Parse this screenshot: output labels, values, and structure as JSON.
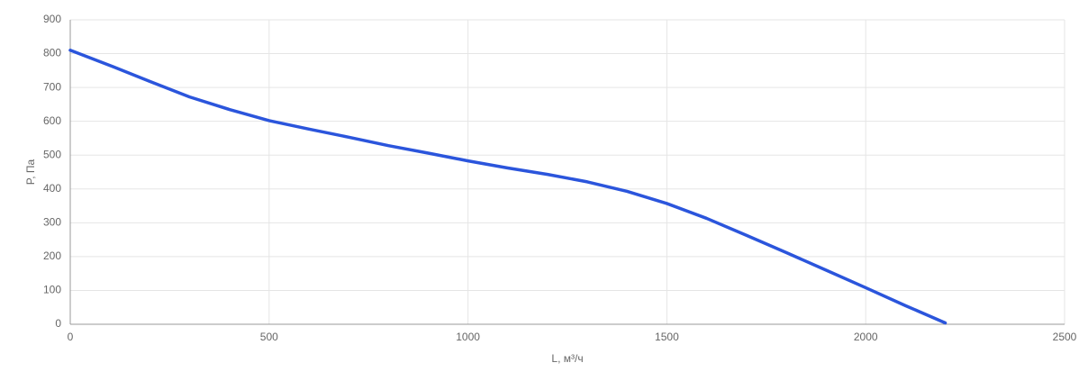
{
  "chart_data": {
    "type": "line",
    "x_label": "L, м³/ч",
    "y_label": "P, Па",
    "x": [
      0,
      100,
      200,
      300,
      400,
      500,
      600,
      700,
      800,
      900,
      1000,
      1100,
      1200,
      1300,
      1400,
      1500,
      1600,
      1700,
      1800,
      1900,
      2000,
      2100,
      2200
    ],
    "series": [
      {
        "name": "P",
        "color": "#2b55dc",
        "values": [
          810,
          765,
          718,
          672,
          635,
          602,
          577,
          553,
          528,
          506,
          483,
          462,
          443,
          421,
          393,
          357,
          313,
          263,
          212,
          160,
          108,
          55,
          4
        ]
      }
    ],
    "xlim": [
      0,
      2500
    ],
    "xticks": [
      0,
      500,
      1000,
      1500,
      2000,
      2500
    ],
    "ylim": [
      0,
      900
    ],
    "yticks": [
      0,
      100,
      200,
      300,
      400,
      500,
      600,
      700,
      800,
      900
    ],
    "grid": true
  }
}
